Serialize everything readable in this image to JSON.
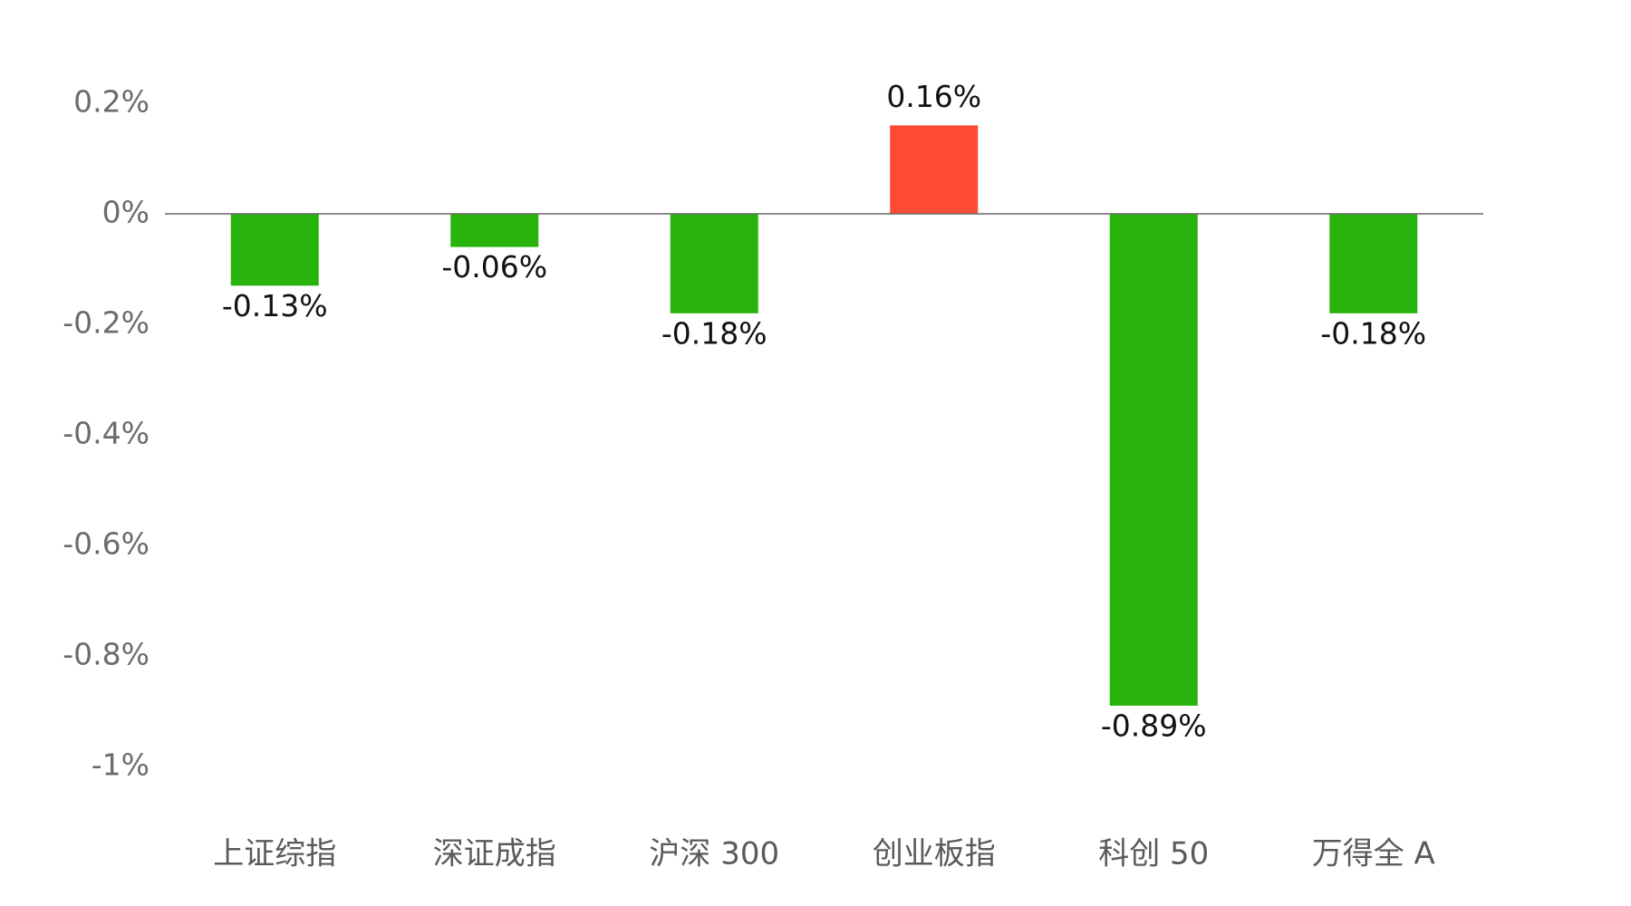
{
  "chart_data": {
    "type": "bar",
    "categories": [
      "上证综指",
      "深证成指",
      "沪深 300",
      "创业板指",
      "科创 50",
      "万得全 A"
    ],
    "values": [
      -0.13,
      -0.06,
      -0.18,
      0.16,
      -0.89,
      -0.18
    ],
    "value_labels": [
      "-0.13%",
      "-0.06%",
      "-0.18%",
      "0.16%",
      "-0.89%",
      "-0.18%"
    ],
    "positive_color": "#ff4a33",
    "negative_color": "#28b30d",
    "ylim": [
      -1,
      0.2
    ],
    "yticks": [
      {
        "value": 0.2,
        "label": "0.2%"
      },
      {
        "value": 0,
        "label": "0%"
      },
      {
        "value": -0.2,
        "label": "-0.2%"
      },
      {
        "value": -0.4,
        "label": "-0.4%"
      },
      {
        "value": -0.6,
        "label": "-0.6%"
      },
      {
        "value": -0.8,
        "label": "-0.8%"
      },
      {
        "value": -1,
        "label": "-1%"
      }
    ],
    "grid": false
  }
}
